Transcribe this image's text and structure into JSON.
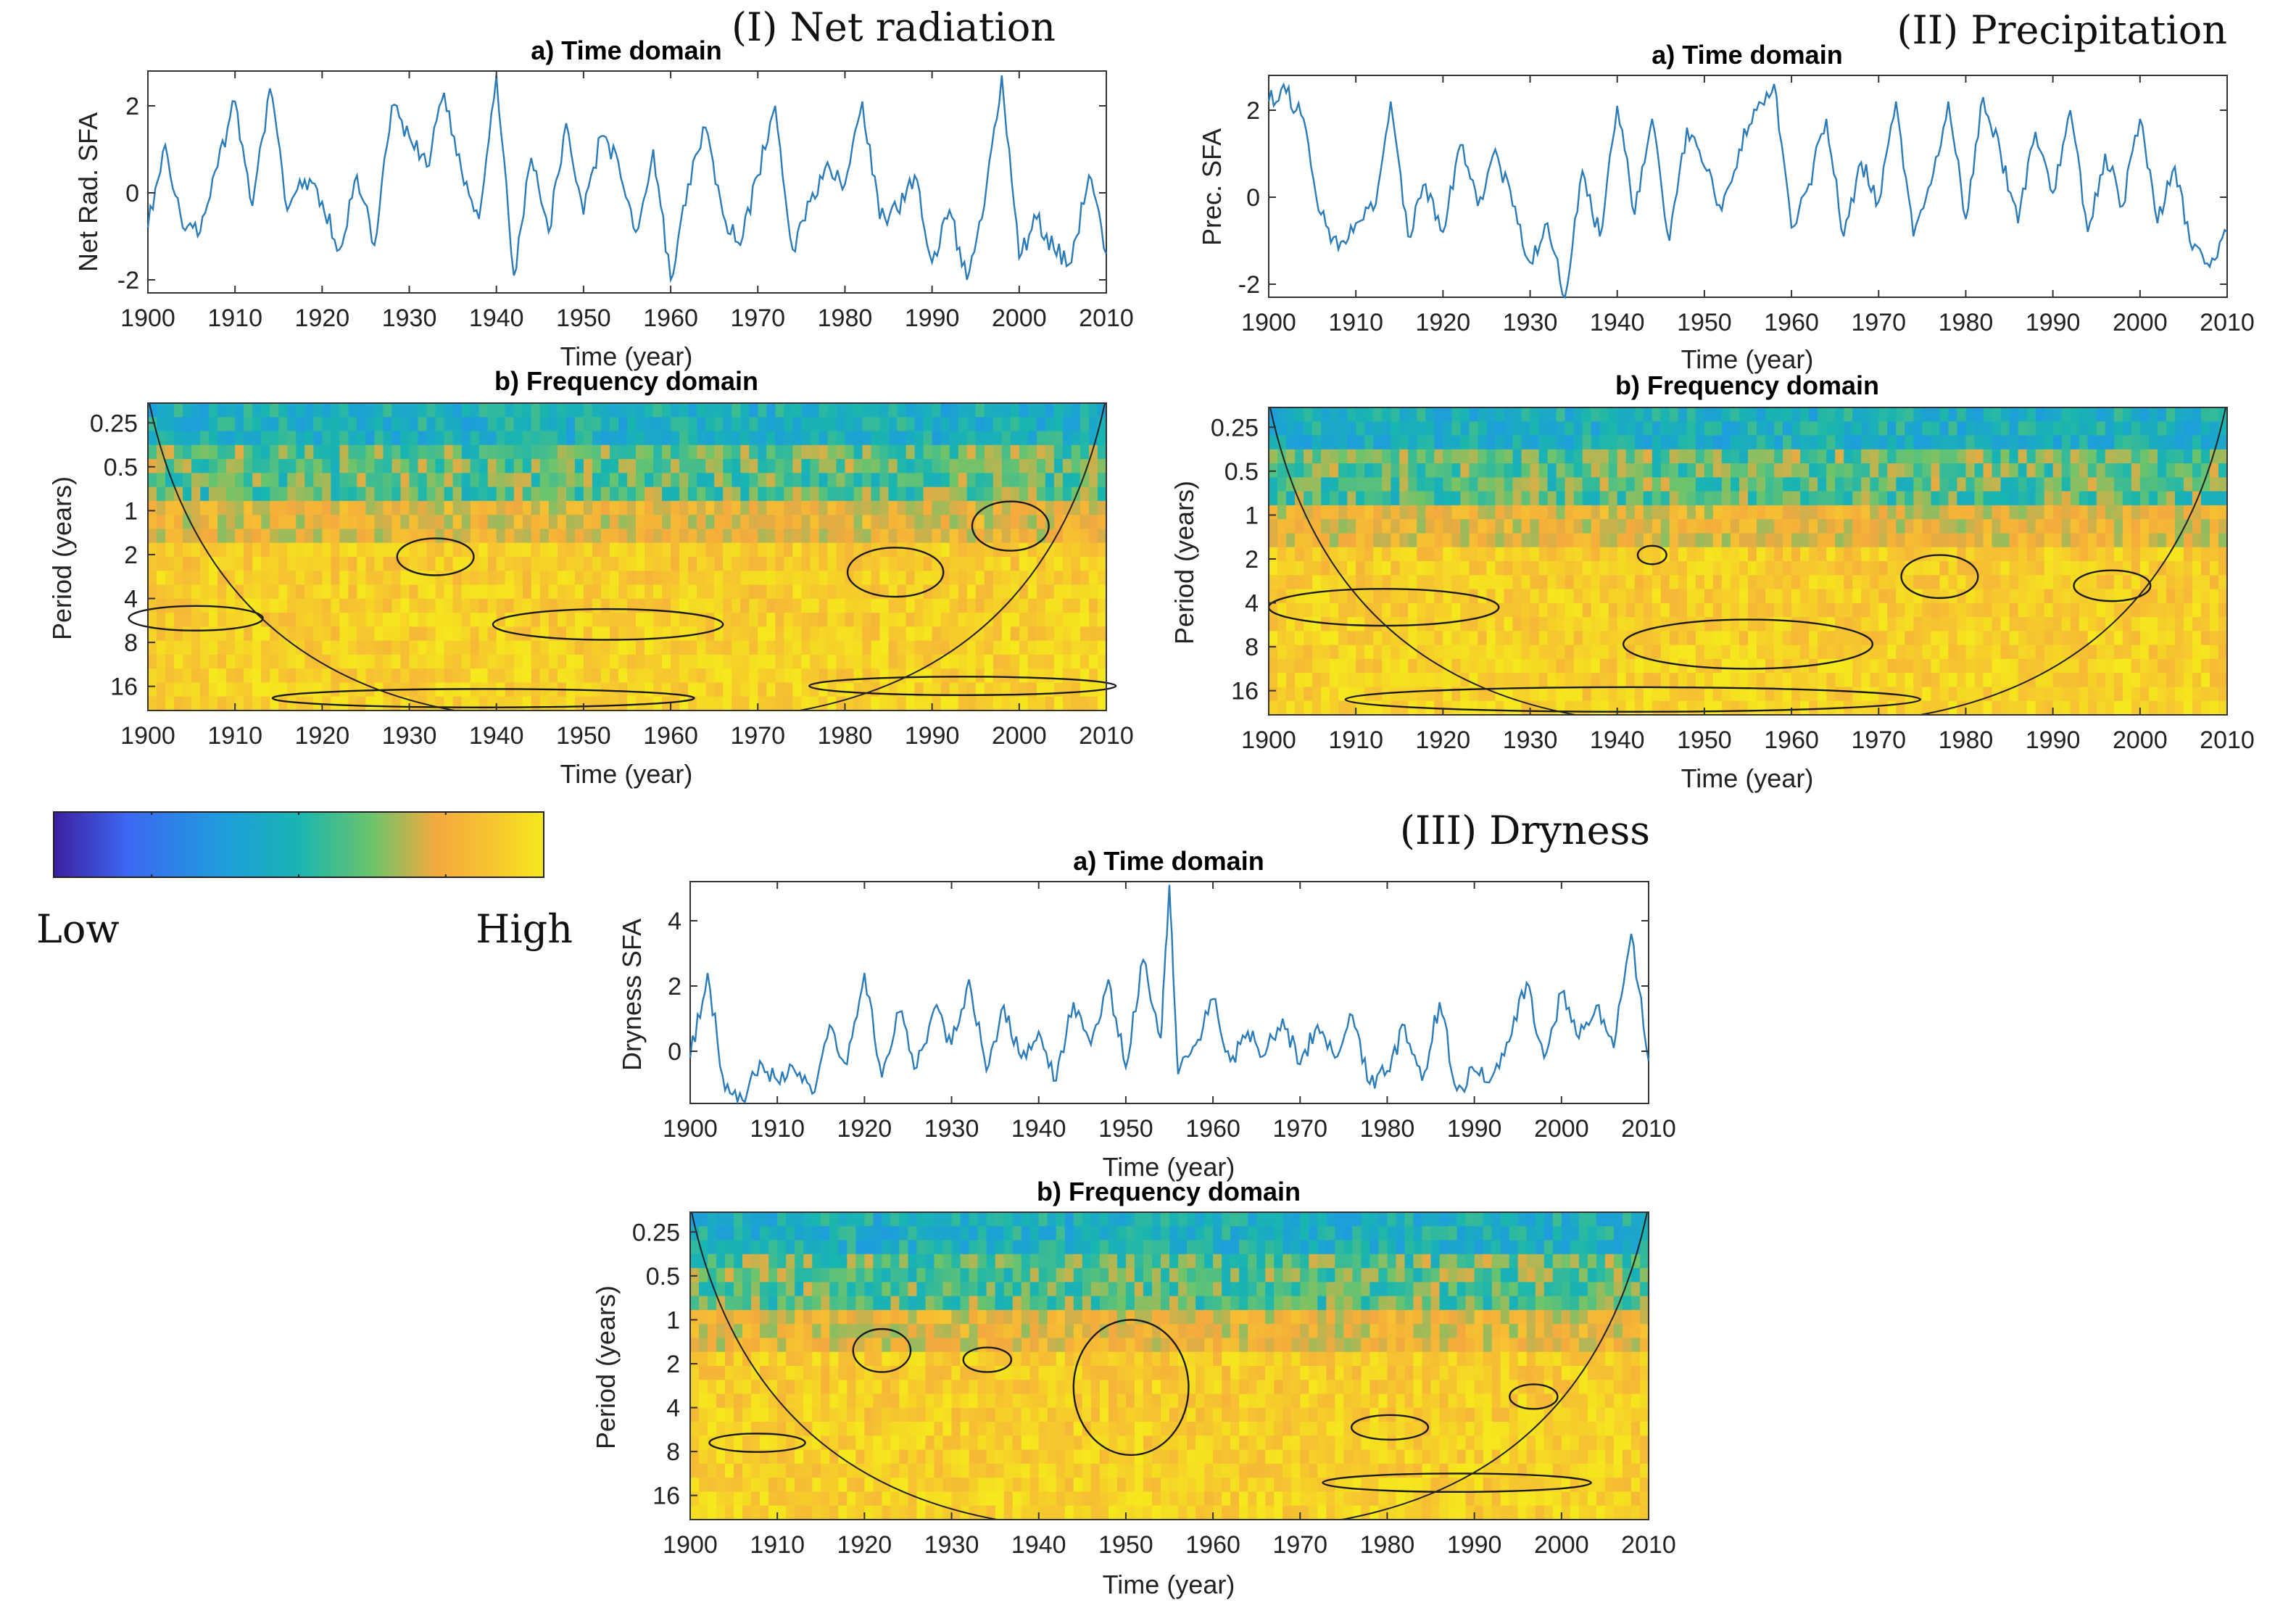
{
  "colors": {
    "line": "#2b7bb9",
    "colormap": [
      "#3b1fa0",
      "#3d67f2",
      "#1e9edb",
      "#19b5b0",
      "#6dc46b",
      "#f4a93e",
      "#f6c62f",
      "#f5e81c"
    ],
    "contour": "#1a1a1a"
  },
  "colorbar": {
    "low_label": "Low",
    "high_label": "High"
  },
  "chart_data": [
    {
      "id": "I",
      "panel_title": "(I) Net radiation",
      "time": {
        "type": "line",
        "title": "a) Time domain",
        "xlabel": "Time (year)",
        "ylabel": "Net Rad. SFA",
        "xlim": [
          1900,
          2010
        ],
        "ylim": [
          -2.3,
          2.8
        ],
        "xticks": [
          1900,
          1910,
          1920,
          1930,
          1940,
          1950,
          1960,
          1970,
          1980,
          1990,
          2000,
          2010
        ],
        "yticks": [
          -2,
          0,
          2
        ],
        "x": [
          1900,
          1902,
          1904,
          1906,
          1908,
          1910,
          1912,
          1914,
          1916,
          1918,
          1920,
          1922,
          1924,
          1926,
          1928,
          1930,
          1932,
          1934,
          1936,
          1938,
          1940,
          1942,
          1944,
          1946,
          1948,
          1950,
          1952,
          1954,
          1956,
          1958,
          1960,
          1962,
          1964,
          1966,
          1968,
          1970,
          1972,
          1974,
          1976,
          1978,
          1980,
          1982,
          1984,
          1986,
          1988,
          1990,
          1992,
          1994,
          1996,
          1998,
          2000,
          2002,
          2004,
          2006,
          2008,
          2010
        ],
        "y": [
          -0.8,
          1.1,
          -0.8,
          -0.9,
          0.6,
          2.1,
          -0.3,
          2.4,
          -0.4,
          0.3,
          -0.2,
          -1.3,
          0.4,
          -1.2,
          2.0,
          1.3,
          0.6,
          2.3,
          0.5,
          -0.6,
          2.7,
          -1.9,
          0.8,
          -0.9,
          1.6,
          -0.5,
          1.3,
          0.7,
          -0.9,
          1.0,
          -2.0,
          0.2,
          1.5,
          -0.5,
          -1.2,
          0.4,
          2.0,
          -1.3,
          -0.2,
          0.7,
          0.2,
          2.1,
          -0.6,
          -0.4,
          0.4,
          -1.6,
          -0.4,
          -2.0,
          -0.3,
          2.7,
          -1.5,
          -0.6,
          -1.3,
          -1.6,
          0.4,
          -1.4
        ]
      },
      "freq": {
        "type": "heatmap",
        "title": "b) Frequency domain",
        "xlabel": "Time (year)",
        "ylabel": "Period (years)",
        "xlim": [
          1900,
          2010
        ],
        "yticks": [
          "0.25",
          "0.5",
          "1",
          "2",
          "4",
          "8",
          "16"
        ],
        "xticks": [
          1900,
          1910,
          1920,
          1930,
          1940,
          1950,
          1960,
          1970,
          1980,
          1990,
          2000,
          2010
        ]
      }
    },
    {
      "id": "II",
      "panel_title": "(II) Precipitation",
      "time": {
        "type": "line",
        "title": "a) Time domain",
        "xlabel": "Time (year)",
        "ylabel": "Prec. SFA",
        "xlim": [
          1900,
          2010
        ],
        "ylim": [
          -2.3,
          2.8
        ],
        "xticks": [
          1900,
          1910,
          1920,
          1930,
          1940,
          1950,
          1960,
          1970,
          1980,
          1990,
          2000,
          2010
        ],
        "yticks": [
          -2,
          0,
          2
        ],
        "x": [
          1900,
          1902,
          1904,
          1906,
          1908,
          1910,
          1912,
          1914,
          1916,
          1918,
          1920,
          1922,
          1924,
          1926,
          1928,
          1930,
          1932,
          1934,
          1936,
          1938,
          1940,
          1942,
          1944,
          1946,
          1948,
          1950,
          1952,
          1954,
          1956,
          1958,
          1960,
          1962,
          1964,
          1966,
          1968,
          1970,
          1972,
          1974,
          1976,
          1978,
          1980,
          1982,
          1984,
          1986,
          1988,
          1990,
          1992,
          1994,
          1996,
          1998,
          2000,
          2002,
          2004,
          2006,
          2008,
          2010
        ],
        "y": [
          2.2,
          2.4,
          1.8,
          -0.4,
          -1.2,
          -0.6,
          -0.3,
          2.2,
          -0.9,
          0.3,
          -0.8,
          1.2,
          -0.2,
          1.1,
          -0.2,
          -1.5,
          -0.6,
          -2.3,
          0.6,
          -0.9,
          2.1,
          -0.4,
          1.8,
          -1.0,
          1.6,
          0.7,
          -0.3,
          1.1,
          2.0,
          2.6,
          -0.7,
          0.3,
          1.8,
          -0.9,
          0.8,
          -0.1,
          2.2,
          -0.9,
          0.3,
          2.2,
          -0.5,
          2.3,
          1.0,
          -0.6,
          1.5,
          0.1,
          2.0,
          -0.8,
          1.0,
          -0.2,
          1.8,
          -0.6,
          0.7,
          -1.2,
          -1.6,
          -0.8
        ]
      },
      "freq": {
        "type": "heatmap",
        "title": "b) Frequency domain",
        "xlabel": "Time (year)",
        "ylabel": "Period (years)",
        "xlim": [
          1900,
          2010
        ],
        "yticks": [
          "0.25",
          "0.5",
          "1",
          "2",
          "4",
          "8",
          "16"
        ],
        "xticks": [
          1900,
          1910,
          1920,
          1930,
          1940,
          1950,
          1960,
          1970,
          1980,
          1990,
          2000,
          2010
        ]
      }
    },
    {
      "id": "III",
      "panel_title": "(III) Dryness",
      "time": {
        "type": "line",
        "title": "a) Time domain",
        "xlabel": "Time (year)",
        "ylabel": "Dryness SFA",
        "xlim": [
          1900,
          2010
        ],
        "ylim": [
          -1.6,
          5.2
        ],
        "xticks": [
          1900,
          1910,
          1920,
          1930,
          1940,
          1950,
          1960,
          1970,
          1980,
          1990,
          2000,
          2010
        ],
        "yticks": [
          0,
          2,
          4
        ],
        "x": [
          1900,
          1902,
          1904,
          1906,
          1908,
          1910,
          1912,
          1914,
          1916,
          1918,
          1920,
          1922,
          1924,
          1926,
          1928,
          1930,
          1932,
          1934,
          1936,
          1938,
          1940,
          1942,
          1944,
          1946,
          1948,
          1950,
          1952,
          1954,
          1955,
          1956,
          1958,
          1960,
          1962,
          1964,
          1966,
          1968,
          1970,
          1972,
          1974,
          1976,
          1978,
          1980,
          1982,
          1984,
          1986,
          1988,
          1990,
          1992,
          1994,
          1996,
          1998,
          2000,
          2002,
          2004,
          2006,
          2008,
          2010
        ],
        "y": [
          -0.2,
          2.4,
          -1.2,
          -1.5,
          -0.3,
          -0.9,
          -0.6,
          -1.3,
          0.8,
          -0.4,
          2.4,
          -0.8,
          1.2,
          -0.5,
          1.3,
          0.2,
          2.2,
          -0.6,
          1.4,
          -0.2,
          0.6,
          -0.9,
          1.5,
          0.2,
          2.2,
          -0.5,
          2.8,
          0.4,
          5.1,
          -0.7,
          0.2,
          1.6,
          -0.3,
          0.6,
          -0.1,
          1.0,
          -0.4,
          0.8,
          -0.2,
          1.1,
          -1.0,
          -0.6,
          0.8,
          -0.9,
          1.5,
          -1.2,
          -0.6,
          -0.8,
          0.3,
          2.1,
          -0.2,
          1.8,
          0.4,
          1.4,
          0.1,
          3.6,
          -0.3
        ]
      },
      "freq": {
        "type": "heatmap",
        "title": "b) Frequency domain",
        "xlabel": "Time (year)",
        "ylabel": "Period (years)",
        "xlim": [
          1900,
          2010
        ],
        "yticks": [
          "0.25",
          "0.5",
          "1",
          "2",
          "4",
          "8",
          "16"
        ],
        "xticks": [
          1900,
          1910,
          1920,
          1930,
          1940,
          1950,
          1960,
          1970,
          1980,
          1990,
          2000,
          2010
        ]
      }
    }
  ]
}
